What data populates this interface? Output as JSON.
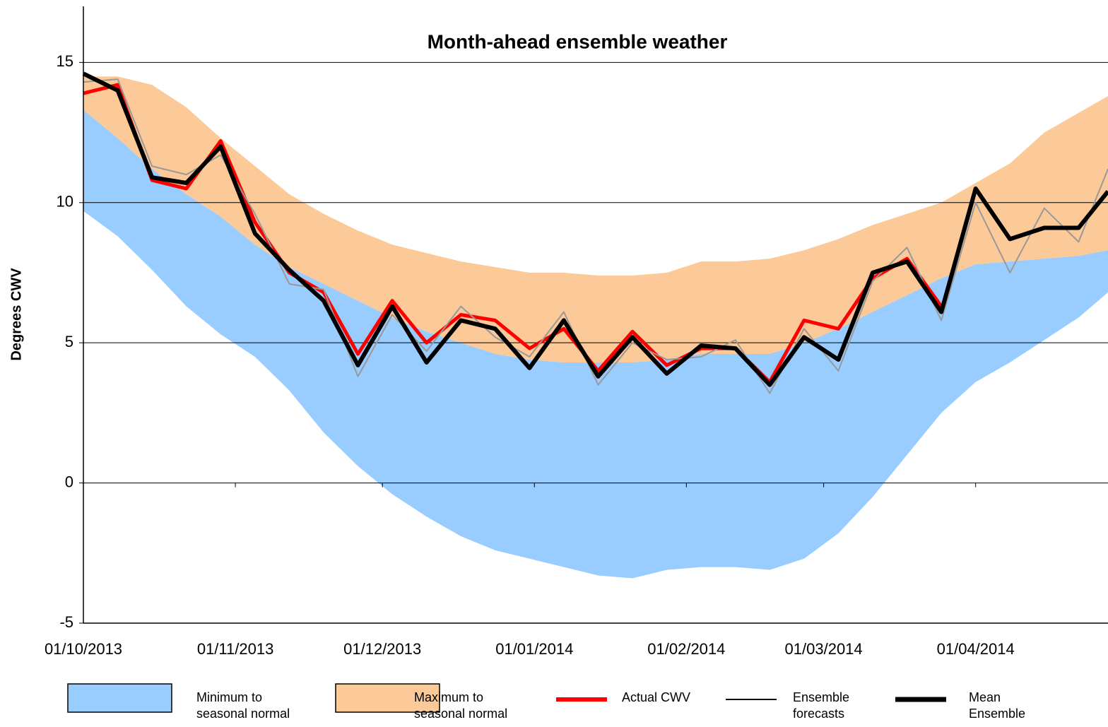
{
  "chart_data": {
    "type": "line",
    "title": "Month-ahead ensemble weather",
    "y_label": "Degrees CWV",
    "x": [
      "2013-10-01",
      "2013-10-08",
      "2013-10-15",
      "2013-10-22",
      "2013-10-29",
      "2013-11-05",
      "2013-11-12",
      "2013-11-19",
      "2013-11-26",
      "2013-12-03",
      "2013-12-10",
      "2013-12-17",
      "2013-12-24",
      "2013-12-31",
      "2014-01-07",
      "2014-01-14",
      "2014-01-21",
      "2014-01-28",
      "2014-02-04",
      "2014-02-11",
      "2014-02-18",
      "2014-02-25",
      "2014-03-04",
      "2014-03-11",
      "2014-03-18",
      "2014-03-25",
      "2014-04-01",
      "2014-04-08",
      "2014-04-15",
      "2014-04-22",
      "2014-04-28"
    ],
    "xlim": [
      "2013-10-01",
      "2014-04-28"
    ],
    "xticks": [
      {
        "value": "2013-10-01",
        "label": "01/10/2013"
      },
      {
        "value": "2013-11-01",
        "label": "01/11/2013"
      },
      {
        "value": "2013-12-01",
        "label": "01/12/2013"
      },
      {
        "value": "2014-01-01",
        "label": "01/01/2014"
      },
      {
        "value": "2014-02-01",
        "label": "01/02/2014"
      },
      {
        "value": "2014-03-01",
        "label": "01/03/2014"
      },
      {
        "value": "2014-04-01",
        "label": "01/04/2014"
      }
    ],
    "ylim": [
      -5,
      17
    ],
    "yticks": [
      -5,
      0,
      5,
      10,
      15
    ],
    "grid": true,
    "seasonal_normal": [
      13.3,
      12.3,
      11.2,
      10.3,
      9.5,
      8.5,
      7.7,
      7.1,
      6.5,
      5.9,
      5.4,
      5.0,
      4.6,
      4.4,
      4.3,
      4.3,
      4.3,
      4.4,
      4.6,
      4.6,
      4.6,
      5.0,
      5.5,
      6.1,
      6.7,
      7.3,
      7.8,
      7.9,
      8.0,
      8.1,
      8.3
    ],
    "series": [
      {
        "name": "Minimum to seasonal normal",
        "kind": "band",
        "color": "#99ccff",
        "values": [
          9.7,
          8.8,
          7.6,
          6.3,
          5.3,
          4.5,
          3.3,
          1.8,
          0.6,
          -0.4,
          -1.2,
          -1.9,
          -2.4,
          -2.7,
          -3.0,
          -3.3,
          -3.4,
          -3.1,
          -3.0,
          -3.0,
          -3.1,
          -2.7,
          -1.8,
          -0.5,
          1.0,
          2.5,
          3.6,
          4.3,
          5.1,
          5.9,
          6.8
        ]
      },
      {
        "name": "Maximum to seasonal normal",
        "kind": "band",
        "color": "#fcc999",
        "values": [
          14.5,
          14.5,
          14.2,
          13.4,
          12.3,
          11.3,
          10.3,
          9.6,
          9.0,
          8.5,
          8.2,
          7.9,
          7.7,
          7.5,
          7.5,
          7.4,
          7.4,
          7.5,
          7.9,
          7.9,
          8.0,
          8.3,
          8.7,
          9.2,
          9.6,
          10.0,
          10.7,
          11.4,
          12.5,
          13.2,
          13.8
        ]
      },
      {
        "name": "Actual CWV",
        "kind": "line",
        "color": "#ff0000",
        "width": 5,
        "values": [
          13.9,
          14.2,
          10.8,
          10.5,
          12.2,
          9.3,
          7.5,
          6.8,
          4.6,
          6.5,
          5.0,
          6.0,
          5.8,
          4.8,
          5.5,
          4.0,
          5.4,
          4.2,
          4.8,
          4.8,
          3.6,
          5.8,
          5.5,
          7.3,
          8.0,
          6.3,
          null,
          null,
          null,
          null,
          null
        ]
      },
      {
        "name": "Ensemble forecasts",
        "kind": "line",
        "color": "#999999",
        "legend_color": "#000000",
        "width": 2,
        "values": [
          14.3,
          14.4,
          11.3,
          11.0,
          11.7,
          9.6,
          7.1,
          6.9,
          3.8,
          6.0,
          4.7,
          6.3,
          5.2,
          4.5,
          6.1,
          3.5,
          5.0,
          4.4,
          4.5,
          5.1,
          3.2,
          5.5,
          4.0,
          7.2,
          8.4,
          5.8,
          10.0,
          7.5,
          9.8,
          8.6,
          11.2
        ]
      },
      {
        "name": "Mean Ensemble",
        "kind": "line",
        "color": "#000000",
        "width": 6,
        "values": [
          14.6,
          14.0,
          10.9,
          10.7,
          12.0,
          8.9,
          7.6,
          6.5,
          4.2,
          6.3,
          4.3,
          5.8,
          5.5,
          4.1,
          5.8,
          3.8,
          5.2,
          3.9,
          4.9,
          4.8,
          3.5,
          5.2,
          4.4,
          7.5,
          7.9,
          6.1,
          10.5,
          8.7,
          9.1,
          9.1,
          10.4
        ]
      }
    ]
  }
}
